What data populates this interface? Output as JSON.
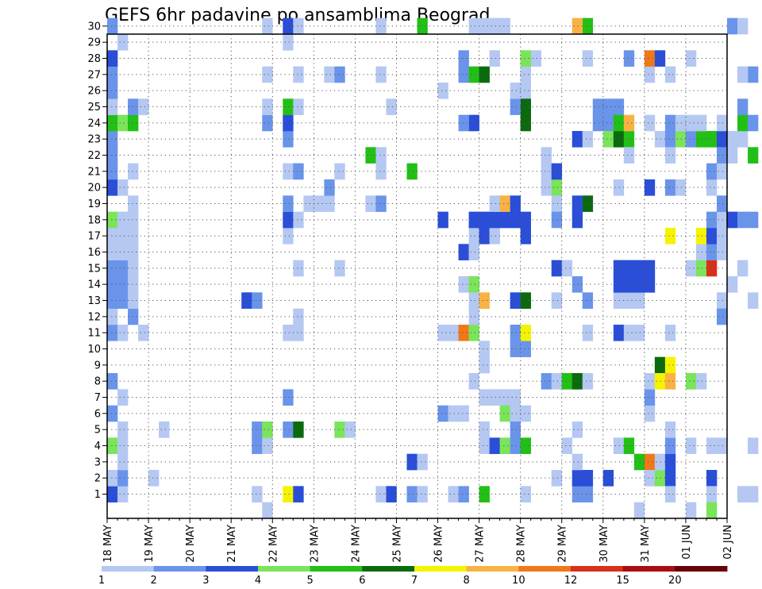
{
  "chart_data": {
    "type": "heatmap",
    "title": "GEFS 6hr padavine po ansamblima Beograd",
    "y_ticks": [
      "1",
      "2",
      "3",
      "4",
      "5",
      "6",
      "7",
      "8",
      "9",
      "10",
      "11",
      "12",
      "13",
      "14",
      "15",
      "16",
      "17",
      "18",
      "19",
      "20",
      "21",
      "22",
      "23",
      "24",
      "25",
      "26",
      "27",
      "28",
      "29",
      "30"
    ],
    "x_ticks": [
      "18 MAY",
      "19 MAY",
      "20 MAY",
      "21 MAY",
      "22 MAY",
      "23 MAY",
      "24 MAY",
      "25 MAY",
      "26 MAY",
      "27 MAY",
      "28 MAY",
      "29 MAY",
      "30 MAY",
      "31 MAY",
      "01 JUN",
      "02 JUN"
    ],
    "x_range": [
      "18 MAY 00z",
      "02 JUN 00z"
    ],
    "y_range": [
      1,
      30
    ],
    "timestep_hours": 6,
    "grid": "dotted",
    "legend_position": "bottom",
    "colorbar": {
      "labels": [
        "1",
        "2",
        "3",
        "4",
        "5",
        "6",
        "7",
        "8",
        "10",
        "12",
        "15",
        "20"
      ],
      "colors": [
        "#b4c8f2",
        "#6a94ea",
        "#2a4ed8",
        "#7ae45a",
        "#22c016",
        "#0b6a0e",
        "#f4f400",
        "#f8b244",
        "#f07818",
        "#d8301a",
        "#a80e10",
        "#6a0008"
      ]
    },
    "note": "values are color classes 1-12; each entry = [day_offset_from_18_MAY, member, class]",
    "cells": [
      [
        0.0,
        1,
        3
      ],
      [
        0.25,
        1,
        1
      ],
      [
        0.0,
        2,
        1
      ],
      [
        0.25,
        2,
        2
      ],
      [
        0.25,
        3,
        1
      ],
      [
        0.0,
        4,
        4
      ],
      [
        0.25,
        4,
        1
      ],
      [
        0.25,
        5,
        1
      ],
      [
        0.0,
        6,
        2
      ],
      [
        0.25,
        7,
        1
      ],
      [
        0.0,
        8,
        2
      ],
      [
        0.0,
        11,
        2
      ],
      [
        0.25,
        11,
        1
      ],
      [
        0.0,
        12,
        1
      ],
      [
        0.5,
        12,
        2
      ],
      [
        0.0,
        13,
        2
      ],
      [
        0.25,
        13,
        2
      ],
      [
        0.5,
        13,
        1
      ],
      [
        0.0,
        14,
        2
      ],
      [
        0.25,
        14,
        2
      ],
      [
        0.5,
        14,
        1
      ],
      [
        0.0,
        15,
        2
      ],
      [
        0.25,
        15,
        2
      ],
      [
        0.5,
        15,
        1
      ],
      [
        0.0,
        16,
        1
      ],
      [
        0.25,
        16,
        1
      ],
      [
        0.5,
        16,
        1
      ],
      [
        0.0,
        17,
        1
      ],
      [
        0.25,
        17,
        1
      ],
      [
        0.5,
        17,
        1
      ],
      [
        0.0,
        18,
        4
      ],
      [
        0.25,
        18,
        1
      ],
      [
        0.5,
        18,
        1
      ],
      [
        0.5,
        19,
        1
      ],
      [
        0.0,
        20,
        3
      ],
      [
        0.25,
        20,
        1
      ],
      [
        0.0,
        21,
        2
      ],
      [
        0.5,
        21,
        1
      ],
      [
        0.0,
        22,
        2
      ],
      [
        0.0,
        23,
        2
      ],
      [
        0.0,
        24,
        5
      ],
      [
        0.25,
        24,
        4
      ],
      [
        0.5,
        24,
        5
      ],
      [
        0.0,
        25,
        1
      ],
      [
        0.5,
        25,
        2
      ],
      [
        0.75,
        25,
        1
      ],
      [
        0.0,
        26,
        2
      ],
      [
        0.0,
        27,
        2
      ],
      [
        0.0,
        28,
        3
      ],
      [
        0.25,
        29,
        1
      ],
      [
        0.0,
        30,
        2
      ],
      [
        1.0,
        2,
        1
      ],
      [
        0.75,
        11,
        1
      ],
      [
        1.25,
        5,
        1
      ],
      [
        3.5,
        1,
        1
      ],
      [
        3.75,
        0,
        1
      ],
      [
        3.5,
        4,
        2
      ],
      [
        3.75,
        4,
        1
      ],
      [
        3.5,
        5,
        2
      ],
      [
        3.75,
        5,
        4
      ],
      [
        3.25,
        13,
        3
      ],
      [
        3.5,
        13,
        2
      ],
      [
        3.75,
        27,
        1
      ],
      [
        3.75,
        30,
        1
      ],
      [
        3.75,
        24,
        2
      ],
      [
        3.75,
        25,
        1
      ],
      [
        4.25,
        1,
        7
      ],
      [
        4.5,
        1,
        3
      ],
      [
        4.25,
        5,
        2
      ],
      [
        4.5,
        5,
        6
      ],
      [
        4.25,
        7,
        2
      ],
      [
        4.25,
        11,
        1
      ],
      [
        4.5,
        11,
        1
      ],
      [
        4.5,
        12,
        1
      ],
      [
        4.5,
        15,
        1
      ],
      [
        4.25,
        17,
        1
      ],
      [
        4.25,
        18,
        3
      ],
      [
        4.5,
        18,
        1
      ],
      [
        4.25,
        19,
        2
      ],
      [
        4.75,
        19,
        1
      ],
      [
        4.25,
        21,
        1
      ],
      [
        4.5,
        21,
        2
      ],
      [
        4.25,
        23,
        2
      ],
      [
        4.25,
        24,
        3
      ],
      [
        4.25,
        25,
        5
      ],
      [
        4.5,
        25,
        1
      ],
      [
        4.5,
        27,
        1
      ],
      [
        4.25,
        29,
        1
      ],
      [
        4.25,
        30,
        3
      ],
      [
        4.5,
        30,
        1
      ],
      [
        5.5,
        5,
        4
      ],
      [
        5.75,
        5,
        1
      ],
      [
        5.5,
        15,
        1
      ],
      [
        5.0,
        19,
        1
      ],
      [
        5.25,
        19,
        1
      ],
      [
        5.5,
        21,
        1
      ],
      [
        5.25,
        20,
        2
      ],
      [
        5.25,
        27,
        1
      ],
      [
        5.5,
        27,
        2
      ],
      [
        6.5,
        1,
        1
      ],
      [
        6.75,
        1,
        3
      ],
      [
        6.25,
        22,
        5
      ],
      [
        6.5,
        22,
        1
      ],
      [
        6.25,
        19,
        1
      ],
      [
        6.5,
        19,
        2
      ],
      [
        6.5,
        21,
        1
      ],
      [
        6.5,
        27,
        1
      ],
      [
        6.5,
        30,
        1
      ],
      [
        6.75,
        25,
        1
      ],
      [
        7.25,
        1,
        2
      ],
      [
        7.5,
        1,
        1
      ],
      [
        7.25,
        3,
        3
      ],
      [
        7.5,
        3,
        1
      ],
      [
        7.25,
        21,
        5
      ],
      [
        7.5,
        30,
        5
      ],
      [
        8.25,
        1,
        1
      ],
      [
        8.5,
        1,
        2
      ],
      [
        8.0,
        6,
        2
      ],
      [
        8.25,
        6,
        1
      ],
      [
        8.5,
        6,
        1
      ],
      [
        8.0,
        11,
        1
      ],
      [
        8.25,
        11,
        1
      ],
      [
        8.5,
        11,
        9
      ],
      [
        8.75,
        11,
        4
      ],
      [
        8.75,
        12,
        1
      ],
      [
        8.5,
        14,
        1
      ],
      [
        8.75,
        14,
        4
      ],
      [
        8.75,
        13,
        1
      ],
      [
        8.5,
        16,
        3
      ],
      [
        8.75,
        16,
        1
      ],
      [
        8.0,
        18,
        3
      ],
      [
        8.75,
        17,
        1
      ],
      [
        8.75,
        18,
        3
      ],
      [
        8.0,
        26,
        1
      ],
      [
        8.5,
        27,
        2
      ],
      [
        8.75,
        27,
        5
      ],
      [
        8.5,
        28,
        2
      ],
      [
        8.75,
        24,
        3
      ],
      [
        8.5,
        24,
        2
      ],
      [
        8.75,
        30,
        1
      ],
      [
        8.75,
        8,
        1
      ],
      [
        9.0,
        1,
        5
      ],
      [
        9.0,
        4,
        1
      ],
      [
        9.0,
        5,
        1
      ],
      [
        9.0,
        7,
        1
      ],
      [
        9.25,
        7,
        1
      ],
      [
        9.5,
        7,
        1
      ],
      [
        9.75,
        7,
        1
      ],
      [
        9.0,
        9,
        1
      ],
      [
        9.0,
        10,
        1
      ],
      [
        9.0,
        13,
        8
      ],
      [
        9.0,
        17,
        3
      ],
      [
        9.25,
        17,
        1
      ],
      [
        9.0,
        18,
        3
      ],
      [
        9.25,
        18,
        3
      ],
      [
        9.5,
        18,
        3
      ],
      [
        9.75,
        18,
        3
      ],
      [
        9.25,
        19,
        1
      ],
      [
        9.5,
        19,
        8
      ],
      [
        9.75,
        19,
        3
      ],
      [
        9.0,
        27,
        6
      ],
      [
        9.25,
        28,
        1
      ],
      [
        9.5,
        30,
        1
      ],
      [
        9.25,
        30,
        1
      ],
      [
        9.0,
        30,
        1
      ],
      [
        9.25,
        4,
        3
      ],
      [
        9.5,
        4,
        4
      ],
      [
        9.75,
        4,
        2
      ],
      [
        10.0,
        4,
        5
      ],
      [
        9.5,
        6,
        4
      ],
      [
        9.75,
        6,
        1
      ],
      [
        10.0,
        6,
        1
      ],
      [
        9.75,
        5,
        2
      ],
      [
        9.75,
        10,
        2
      ],
      [
        10.0,
        10,
        2
      ],
      [
        9.75,
        11,
        2
      ],
      [
        10.0,
        11,
        7
      ],
      [
        9.75,
        13,
        3
      ],
      [
        10.0,
        13,
        6
      ],
      [
        10.0,
        18,
        3
      ],
      [
        10.0,
        17,
        3
      ],
      [
        10.0,
        26,
        1
      ],
      [
        10.0,
        24,
        6
      ],
      [
        10.0,
        25,
        6
      ],
      [
        10.0,
        27,
        1
      ],
      [
        9.75,
        25,
        2
      ],
      [
        9.75,
        26,
        1
      ],
      [
        10.0,
        1,
        1
      ],
      [
        10.25,
        28,
        1
      ],
      [
        10.0,
        28,
        4
      ],
      [
        10.5,
        8,
        2
      ],
      [
        10.75,
        8,
        1
      ],
      [
        11.0,
        8,
        5
      ],
      [
        11.25,
        8,
        6
      ],
      [
        11.5,
        8,
        1
      ],
      [
        10.5,
        20,
        1
      ],
      [
        10.75,
        20,
        4
      ],
      [
        10.5,
        21,
        1
      ],
      [
        10.75,
        21,
        3
      ],
      [
        10.5,
        22,
        1
      ],
      [
        10.75,
        19,
        1
      ],
      [
        10.75,
        18,
        2
      ],
      [
        10.75,
        15,
        3
      ],
      [
        11.0,
        15,
        1
      ],
      [
        10.75,
        13,
        1
      ],
      [
        10.75,
        2,
        1
      ],
      [
        11.0,
        4,
        1
      ],
      [
        11.25,
        1,
        2
      ],
      [
        11.5,
        1,
        2
      ],
      [
        11.25,
        2,
        3
      ],
      [
        11.5,
        2,
        3
      ],
      [
        11.25,
        3,
        1
      ],
      [
        11.25,
        5,
        1
      ],
      [
        11.25,
        14,
        2
      ],
      [
        11.25,
        18,
        3
      ],
      [
        11.5,
        19,
        6
      ],
      [
        11.25,
        19,
        3
      ],
      [
        11.25,
        23,
        3
      ],
      [
        11.5,
        23,
        1
      ],
      [
        11.5,
        30,
        5
      ],
      [
        11.25,
        30,
        8
      ],
      [
        11.5,
        28,
        1
      ],
      [
        11.5,
        13,
        2
      ],
      [
        11.5,
        11,
        1
      ],
      [
        11.75,
        24,
        2
      ],
      [
        12.0,
        24,
        2
      ],
      [
        12.25,
        24,
        2
      ],
      [
        11.75,
        25,
        2
      ],
      [
        12.0,
        25,
        2
      ],
      [
        12.25,
        25,
        2
      ],
      [
        12.0,
        23,
        4
      ],
      [
        12.25,
        23,
        6
      ],
      [
        12.5,
        23,
        5
      ],
      [
        12.25,
        24,
        5
      ],
      [
        12.5,
        24,
        8
      ],
      [
        12.0,
        2,
        3
      ],
      [
        12.25,
        4,
        1
      ],
      [
        12.5,
        4,
        5
      ],
      [
        12.25,
        11,
        3
      ],
      [
        12.5,
        11,
        1
      ],
      [
        12.75,
        11,
        1
      ],
      [
        12.25,
        13,
        1
      ],
      [
        12.5,
        13,
        1
      ],
      [
        12.75,
        13,
        1
      ],
      [
        12.25,
        14,
        3
      ],
      [
        12.5,
        14,
        3
      ],
      [
        12.75,
        14,
        3
      ],
      [
        13.0,
        14,
        3
      ],
      [
        12.25,
        15,
        3
      ],
      [
        12.5,
        15,
        3
      ],
      [
        12.75,
        15,
        3
      ],
      [
        13.0,
        15,
        3
      ],
      [
        12.25,
        20,
        1
      ],
      [
        12.5,
        22,
        1
      ],
      [
        12.5,
        28,
        2
      ],
      [
        12.75,
        0,
        1
      ],
      [
        12.75,
        3,
        5
      ],
      [
        13.0,
        3,
        9
      ],
      [
        13.0,
        2,
        1
      ],
      [
        13.25,
        2,
        4
      ],
      [
        13.0,
        6,
        1
      ],
      [
        13.0,
        7,
        2
      ],
      [
        13.0,
        8,
        1
      ],
      [
        13.0,
        20,
        3
      ],
      [
        13.0,
        24,
        1
      ],
      [
        13.0,
        27,
        1
      ],
      [
        13.0,
        28,
        9
      ],
      [
        13.25,
        28,
        3
      ],
      [
        13.5,
        27,
        1
      ],
      [
        13.25,
        23,
        1
      ],
      [
        13.5,
        24,
        2
      ],
      [
        13.5,
        23,
        2
      ],
      [
        13.25,
        3,
        1
      ],
      [
        13.5,
        3,
        3
      ],
      [
        13.5,
        2,
        3
      ],
      [
        13.5,
        4,
        2
      ],
      [
        13.5,
        5,
        1
      ],
      [
        13.5,
        1,
        1
      ],
      [
        13.5,
        11,
        1
      ],
      [
        13.25,
        9,
        6
      ],
      [
        13.5,
        9,
        7
      ],
      [
        13.25,
        8,
        7
      ],
      [
        13.5,
        8,
        8
      ],
      [
        13.5,
        17,
        7
      ],
      [
        13.5,
        20,
        2
      ],
      [
        13.75,
        20,
        1
      ],
      [
        13.75,
        23,
        4
      ],
      [
        13.75,
        24,
        1
      ],
      [
        13.5,
        22,
        1
      ],
      [
        14.0,
        0,
        1
      ],
      [
        14.0,
        4,
        1
      ],
      [
        14.0,
        8,
        4
      ],
      [
        14.25,
        8,
        1
      ],
      [
        14.0,
        15,
        1
      ],
      [
        14.25,
        15,
        4
      ],
      [
        14.5,
        15,
        10
      ],
      [
        14.25,
        16,
        1
      ],
      [
        14.5,
        16,
        2
      ],
      [
        14.25,
        17,
        7
      ],
      [
        14.5,
        17,
        3
      ],
      [
        14.0,
        23,
        2
      ],
      [
        14.25,
        23,
        5
      ],
      [
        14.5,
        23,
        1
      ],
      [
        14.0,
        24,
        1
      ],
      [
        14.25,
        24,
        1
      ],
      [
        14.5,
        2,
        3
      ],
      [
        14.5,
        1,
        1
      ],
      [
        14.5,
        4,
        1
      ],
      [
        14.75,
        4,
        1
      ],
      [
        14.5,
        18,
        2
      ],
      [
        14.75,
        18,
        1
      ],
      [
        14.75,
        17,
        1
      ],
      [
        14.75,
        16,
        1
      ],
      [
        14.5,
        20,
        1
      ],
      [
        14.75,
        19,
        2
      ],
      [
        14.5,
        21,
        2
      ],
      [
        14.75,
        21,
        1
      ],
      [
        14.5,
        23,
        5
      ],
      [
        14.75,
        23,
        3
      ],
      [
        14.75,
        22,
        2
      ],
      [
        15.0,
        22,
        1
      ],
      [
        14.75,
        24,
        1
      ],
      [
        14.75,
        13,
        1
      ],
      [
        14.75,
        12,
        2
      ],
      [
        14.5,
        0,
        4
      ],
      [
        14.0,
        28,
        1
      ],
      [
        15.0,
        18,
        3
      ],
      [
        15.0,
        23,
        1
      ],
      [
        15.25,
        23,
        1
      ],
      [
        15.25,
        24,
        5
      ],
      [
        15.5,
        24,
        2
      ],
      [
        15.25,
        25,
        2
      ],
      [
        15.0,
        30,
        2
      ],
      [
        15.25,
        30,
        1
      ],
      [
        15.5,
        27,
        2
      ],
      [
        15.25,
        27,
        1
      ],
      [
        15.5,
        22,
        5
      ],
      [
        15.0,
        14,
        1
      ],
      [
        15.25,
        15,
        1
      ],
      [
        15.5,
        18,
        2
      ],
      [
        15.25,
        18,
        2
      ],
      [
        15.25,
        1,
        1
      ],
      [
        15.5,
        1,
        1
      ],
      [
        15.5,
        4,
        1
      ],
      [
        15.5,
        13,
        1
      ]
    ]
  }
}
